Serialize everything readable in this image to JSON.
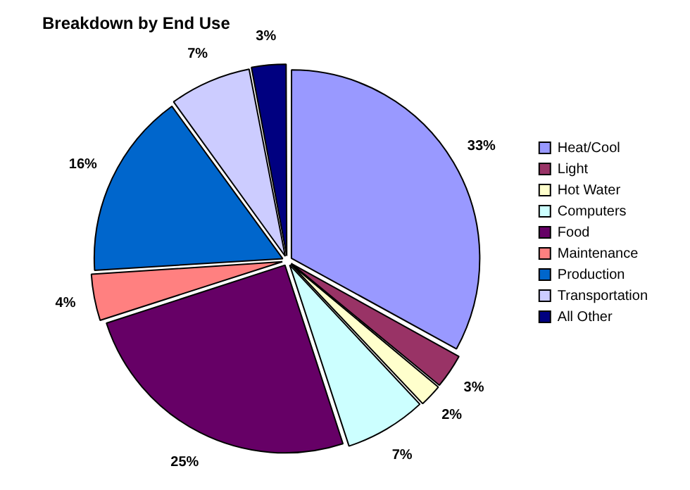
{
  "chart_data": {
    "type": "pie",
    "title": "Breakdown by End Use",
    "categories": [
      "Heat/Cool",
      "Light",
      "Hot Water",
      "Computers",
      "Food",
      "Maintenance",
      "Production",
      "Transportation",
      "All Other"
    ],
    "values": [
      33,
      3,
      2,
      7,
      25,
      4,
      16,
      7,
      3
    ],
    "colors": [
      "#9999ff",
      "#993366",
      "#ffffcc",
      "#ccffff",
      "#660066",
      "#ff8080",
      "#0066cc",
      "#ccccff",
      "#000080"
    ],
    "value_labels": [
      "33%",
      "3%",
      "2%",
      "7%",
      "25%",
      "4%",
      "16%",
      "7%",
      "3%"
    ],
    "legend": "right"
  }
}
